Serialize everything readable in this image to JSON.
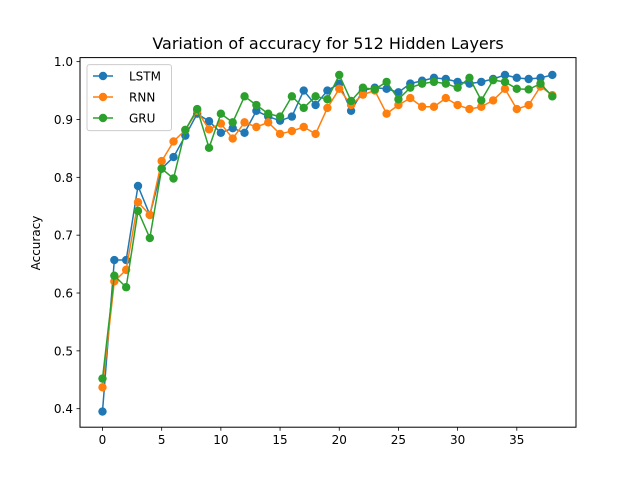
{
  "chart_data": {
    "type": "line",
    "title": "Variation of accuracy for 512 Hidden Layers",
    "xlabel": "",
    "ylabel": "Accuracy",
    "x": [
      0,
      1,
      2,
      3,
      4,
      5,
      6,
      7,
      8,
      9,
      10,
      11,
      12,
      13,
      14,
      15,
      16,
      17,
      18,
      19,
      20,
      21,
      22,
      23,
      24,
      25,
      26,
      27,
      28,
      29,
      30,
      31,
      32,
      33,
      34,
      35,
      36,
      37,
      38
    ],
    "xlim": [
      -1.9,
      40.0
    ],
    "ylim": [
      0.368,
      1.007
    ],
    "xticks": [
      "0",
      "5",
      "10",
      "15",
      "20",
      "25",
      "30",
      "35"
    ],
    "xtick_values": [
      0,
      5,
      10,
      15,
      20,
      25,
      30,
      35
    ],
    "yticks": [
      "0.4",
      "0.5",
      "0.6",
      "0.7",
      "0.8",
      "0.9",
      "1.0"
    ],
    "ytick_values": [
      0.4,
      0.5,
      0.6,
      0.7,
      0.8,
      0.9,
      1.0
    ],
    "grid": false,
    "legend_position": "upper-left",
    "series": [
      {
        "name": "LSTM",
        "color": "#1f77b4",
        "values": [
          0.395,
          0.657,
          0.657,
          0.785,
          0.735,
          0.815,
          0.835,
          0.872,
          0.91,
          0.897,
          0.877,
          0.885,
          0.877,
          0.915,
          0.905,
          0.898,
          0.905,
          0.95,
          0.925,
          0.95,
          0.962,
          0.915,
          0.95,
          0.955,
          0.953,
          0.947,
          0.962,
          0.967,
          0.972,
          0.97,
          0.965,
          0.962,
          0.965,
          0.97,
          0.977,
          0.972,
          0.97,
          0.972,
          0.977
        ]
      },
      {
        "name": "RNN",
        "color": "#ff7f0e",
        "values": [
          0.437,
          0.62,
          0.64,
          0.757,
          0.735,
          0.828,
          0.862,
          0.882,
          0.915,
          0.883,
          0.893,
          0.867,
          0.895,
          0.887,
          0.895,
          0.875,
          0.88,
          0.887,
          0.875,
          0.92,
          0.953,
          0.925,
          0.943,
          0.95,
          0.91,
          0.925,
          0.937,
          0.922,
          0.922,
          0.937,
          0.925,
          0.918,
          0.922,
          0.933,
          0.953,
          0.918,
          0.925,
          0.957,
          0.942
        ]
      },
      {
        "name": "GRU",
        "color": "#2ca02c",
        "values": [
          0.452,
          0.63,
          0.61,
          0.742,
          0.695,
          0.815,
          0.798,
          0.882,
          0.918,
          0.851,
          0.91,
          0.895,
          0.94,
          0.925,
          0.91,
          0.905,
          0.94,
          0.92,
          0.94,
          0.935,
          0.977,
          0.932,
          0.955,
          0.952,
          0.965,
          0.935,
          0.955,
          0.962,
          0.965,
          0.962,
          0.955,
          0.972,
          0.933,
          0.968,
          0.965,
          0.953,
          0.952,
          0.962,
          0.94
        ]
      }
    ]
  }
}
